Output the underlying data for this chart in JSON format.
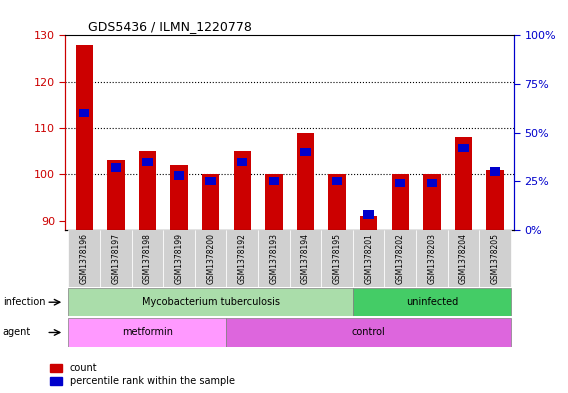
{
  "title": "GDS5436 / ILMN_1220778",
  "samples": [
    "GSM1378196",
    "GSM1378197",
    "GSM1378198",
    "GSM1378199",
    "GSM1378200",
    "GSM1378192",
    "GSM1378193",
    "GSM1378194",
    "GSM1378195",
    "GSM1378201",
    "GSM1378202",
    "GSM1378203",
    "GSM1378204",
    "GSM1378205"
  ],
  "counts": [
    128,
    103,
    105,
    102,
    100,
    105,
    100,
    109,
    100,
    91,
    100,
    100,
    108,
    101
  ],
  "percentiles": [
    60,
    32,
    35,
    28,
    25,
    35,
    25,
    40,
    25,
    8,
    24,
    24,
    42,
    30
  ],
  "ylim_left": [
    88,
    130
  ],
  "ylim_right": [
    0,
    100
  ],
  "yticks_left": [
    90,
    100,
    110,
    120,
    130
  ],
  "yticks_right": [
    0,
    25,
    50,
    75,
    100
  ],
  "infection_groups": [
    {
      "label": "Mycobacterium tuberculosis",
      "start": 0,
      "end": 9,
      "color": "#aaddaa"
    },
    {
      "label": "uninfected",
      "start": 9,
      "end": 14,
      "color": "#44cc66"
    }
  ],
  "agent_groups": [
    {
      "label": "metformin",
      "start": 0,
      "end": 5,
      "color": "#ff99ff"
    },
    {
      "label": "control",
      "start": 5,
      "end": 14,
      "color": "#dd66dd"
    }
  ],
  "bar_color_red": "#cc0000",
  "bar_color_blue": "#0000cc",
  "left_axis_color": "#cc0000",
  "right_axis_color": "#0000cc",
  "grid_yticks": [
    100,
    110,
    120
  ],
  "xticklabel_bg": "#d0d0d0"
}
